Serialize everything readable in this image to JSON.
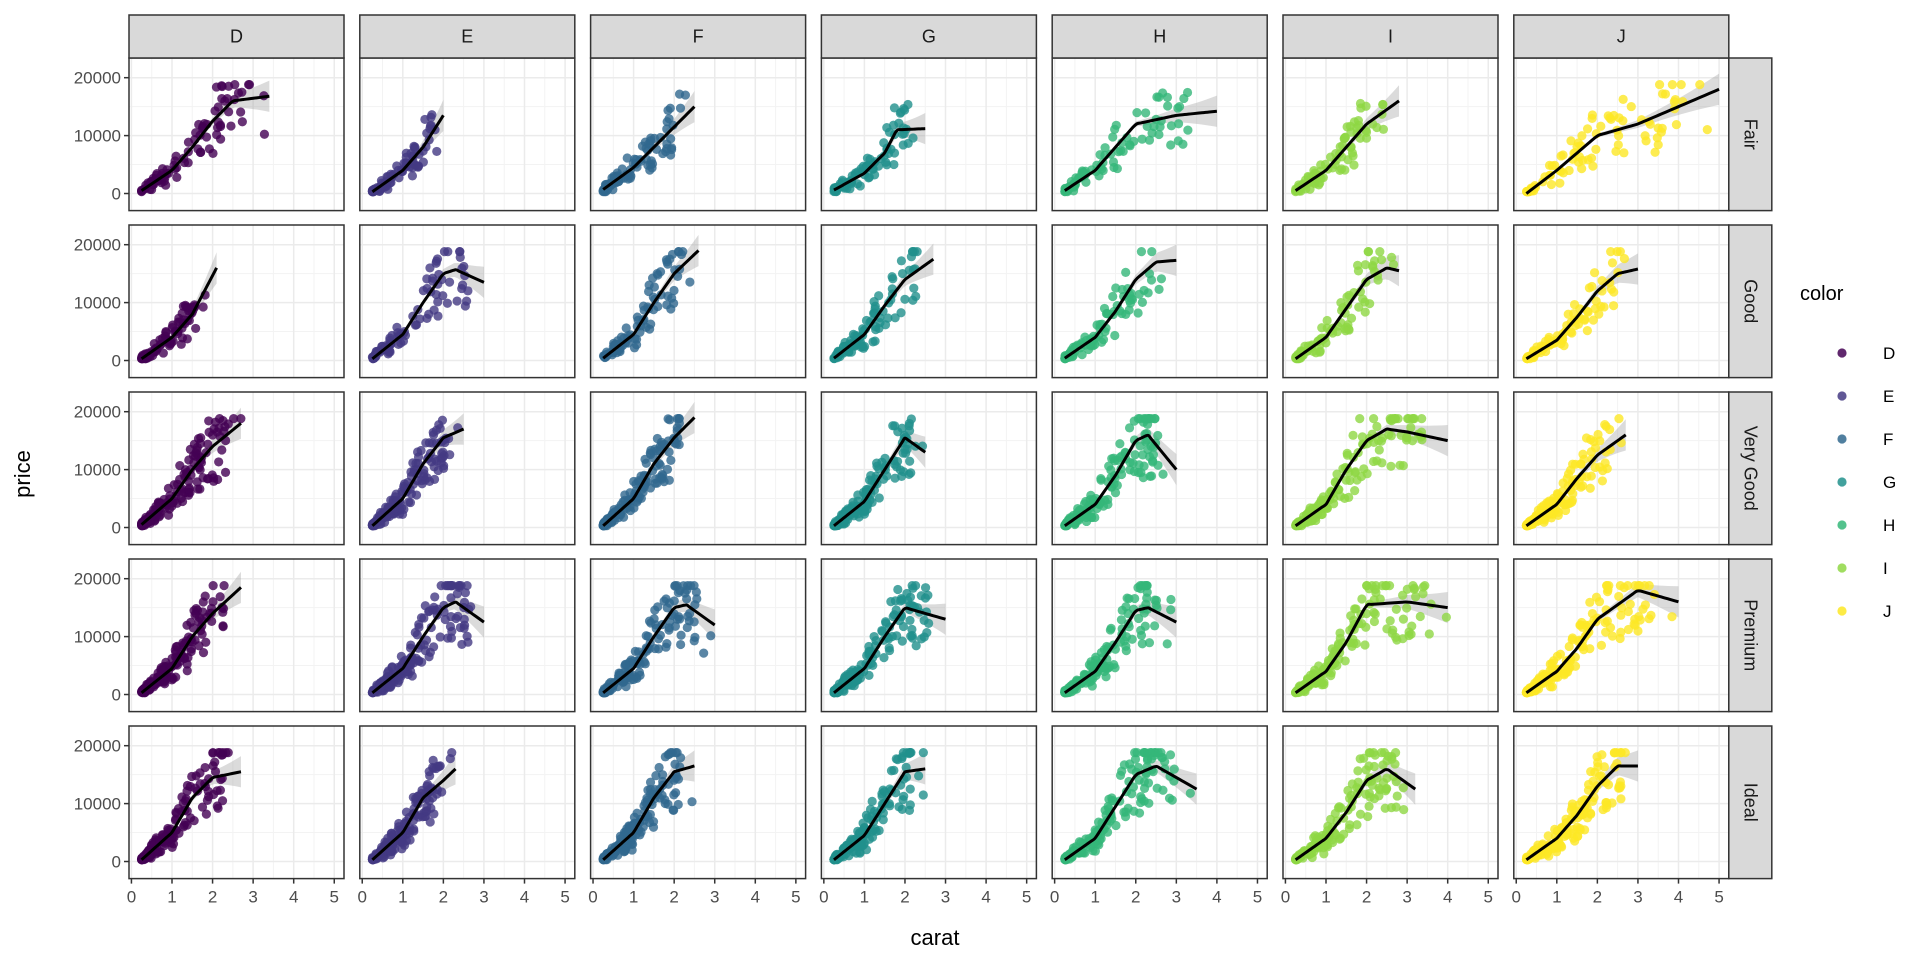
{
  "chart_data": {
    "type": "scatter",
    "title": "",
    "xlabel": "carat",
    "ylabel": "price",
    "xlim": [
      -0.06,
      5.24
    ],
    "ylim": [
      -2950,
      23400
    ],
    "x_ticks": [
      "0",
      "1",
      "2",
      "3",
      "4",
      "5"
    ],
    "x_tick_values": [
      0,
      1,
      2,
      3,
      4,
      5
    ],
    "y_ticks": [
      "0",
      "10000",
      "20000"
    ],
    "y_tick_values": [
      0,
      10000,
      20000
    ],
    "grid": true,
    "facet_cols": [
      "D",
      "E",
      "F",
      "G",
      "H",
      "I",
      "J"
    ],
    "facet_rows": [
      "Fair",
      "Good",
      "Very Good",
      "Premium",
      "Ideal"
    ],
    "legend": {
      "title": "color",
      "placement": "right",
      "entries": [
        {
          "label": "D",
          "color": "#440154"
        },
        {
          "label": "E",
          "color": "#443A83"
        },
        {
          "label": "F",
          "color": "#31688E"
        },
        {
          "label": "G",
          "color": "#21908C"
        },
        {
          "label": "H",
          "color": "#35B779"
        },
        {
          "label": "I",
          "color": "#8FD744"
        },
        {
          "label": "J",
          "color": "#FDE725"
        }
      ]
    },
    "smooth_curves": {
      "Fair": {
        "D": [
          [
            0.25,
            500
          ],
          [
            1,
            4000
          ],
          [
            1.5,
            8000
          ],
          [
            2,
            12500
          ],
          [
            2.5,
            16000
          ],
          [
            3.4,
            16800
          ]
        ],
        "E": [
          [
            0.25,
            300
          ],
          [
            1,
            4000
          ],
          [
            1.5,
            8000
          ],
          [
            2,
            13500
          ]
        ],
        "F": [
          [
            0.25,
            700
          ],
          [
            1,
            4500
          ],
          [
            1.5,
            8000
          ],
          [
            2,
            11500
          ],
          [
            2.5,
            15000
          ]
        ],
        "G": [
          [
            0.25,
            600
          ],
          [
            1,
            3500
          ],
          [
            1.5,
            7000
          ],
          [
            1.8,
            11000
          ],
          [
            2.5,
            11200
          ]
        ],
        "H": [
          [
            0.25,
            500
          ],
          [
            1,
            4000
          ],
          [
            1.5,
            8000
          ],
          [
            2,
            12000
          ],
          [
            3,
            13500
          ],
          [
            4,
            14200
          ]
        ],
        "I": [
          [
            0.25,
            500
          ],
          [
            1,
            4000
          ],
          [
            1.5,
            8000
          ],
          [
            2,
            12000
          ],
          [
            2.8,
            16000
          ]
        ],
        "J": [
          [
            0.25,
            0
          ],
          [
            1,
            4000
          ],
          [
            2,
            10000
          ],
          [
            3,
            12000
          ],
          [
            4,
            15000
          ],
          [
            5,
            18000
          ]
        ]
      },
      "Good": {
        "D": [
          [
            0.25,
            300
          ],
          [
            1,
            4000
          ],
          [
            1.5,
            8000
          ],
          [
            2.1,
            16000
          ]
        ],
        "E": [
          [
            0.25,
            300
          ],
          [
            1,
            4500
          ],
          [
            1.5,
            10000
          ],
          [
            2,
            15000
          ],
          [
            2.3,
            15700
          ],
          [
            3,
            13500
          ]
        ],
        "F": [
          [
            0.25,
            400
          ],
          [
            1,
            4500
          ],
          [
            1.5,
            10000
          ],
          [
            2,
            15000
          ],
          [
            2.6,
            19000
          ]
        ],
        "G": [
          [
            0.25,
            400
          ],
          [
            1,
            4500
          ],
          [
            1.5,
            9500
          ],
          [
            2,
            14000
          ],
          [
            2.7,
            17500
          ]
        ],
        "H": [
          [
            0.25,
            400
          ],
          [
            1,
            4000
          ],
          [
            1.5,
            8500
          ],
          [
            2,
            14000
          ],
          [
            2.5,
            17000
          ],
          [
            3,
            17300
          ]
        ],
        "I": [
          [
            0.25,
            300
          ],
          [
            1,
            4000
          ],
          [
            1.5,
            9000
          ],
          [
            2,
            14000
          ],
          [
            2.5,
            16000
          ],
          [
            2.8,
            15500
          ]
        ],
        "J": [
          [
            0.25,
            300
          ],
          [
            1,
            3500
          ],
          [
            1.5,
            7500
          ],
          [
            2,
            12000
          ],
          [
            2.5,
            15000
          ],
          [
            3,
            15800
          ]
        ]
      },
      "Very Good": {
        "D": [
          [
            0.25,
            500
          ],
          [
            1,
            5000
          ],
          [
            1.5,
            10000
          ],
          [
            2,
            14000
          ],
          [
            2.7,
            18000
          ]
        ],
        "E": [
          [
            0.25,
            300
          ],
          [
            1,
            5000
          ],
          [
            1.5,
            11000
          ],
          [
            2,
            15500
          ],
          [
            2.5,
            17000
          ]
        ],
        "F": [
          [
            0.25,
            300
          ],
          [
            1,
            5000
          ],
          [
            1.5,
            11000
          ],
          [
            2,
            15500
          ],
          [
            2.5,
            19000
          ]
        ],
        "G": [
          [
            0.25,
            300
          ],
          [
            1,
            4500
          ],
          [
            1.5,
            10000
          ],
          [
            2,
            15500
          ],
          [
            2.5,
            13000
          ]
        ],
        "H": [
          [
            0.25,
            300
          ],
          [
            1,
            4000
          ],
          [
            1.5,
            9000
          ],
          [
            2,
            15000
          ],
          [
            2.3,
            16000
          ],
          [
            3,
            10000
          ]
        ],
        "I": [
          [
            0.25,
            300
          ],
          [
            1,
            4000
          ],
          [
            1.5,
            10000
          ],
          [
            2,
            15000
          ],
          [
            2.5,
            17000
          ],
          [
            3,
            16500
          ],
          [
            4,
            15000
          ]
        ],
        "J": [
          [
            0.25,
            300
          ],
          [
            1,
            4000
          ],
          [
            1.5,
            8500
          ],
          [
            2,
            12500
          ],
          [
            2.7,
            16000
          ]
        ]
      },
      "Premium": {
        "D": [
          [
            0.25,
            300
          ],
          [
            1,
            4500
          ],
          [
            1.5,
            10000
          ],
          [
            2,
            14000
          ],
          [
            2.7,
            18500
          ]
        ],
        "E": [
          [
            0.25,
            300
          ],
          [
            1,
            4500
          ],
          [
            1.5,
            10000
          ],
          [
            2,
            15000
          ],
          [
            2.3,
            16000
          ],
          [
            3,
            12500
          ]
        ],
        "F": [
          [
            0.25,
            300
          ],
          [
            1,
            4500
          ],
          [
            1.5,
            10000
          ],
          [
            2,
            15000
          ],
          [
            2.3,
            15500
          ],
          [
            3,
            12000
          ]
        ],
        "G": [
          [
            0.25,
            300
          ],
          [
            1,
            4500
          ],
          [
            1.5,
            10000
          ],
          [
            2,
            15000
          ],
          [
            3,
            13000
          ]
        ],
        "H": [
          [
            0.25,
            300
          ],
          [
            1,
            4000
          ],
          [
            1.5,
            9000
          ],
          [
            2,
            14500
          ],
          [
            2.3,
            15000
          ],
          [
            3,
            12500
          ]
        ],
        "I": [
          [
            0.25,
            300
          ],
          [
            1,
            4000
          ],
          [
            1.5,
            9000
          ],
          [
            2,
            15500
          ],
          [
            3,
            16000
          ],
          [
            4,
            15000
          ]
        ],
        "J": [
          [
            0.25,
            300
          ],
          [
            1,
            4000
          ],
          [
            1.5,
            8000
          ],
          [
            2,
            13000
          ],
          [
            3,
            18000
          ],
          [
            4,
            16000
          ]
        ]
      },
      "Ideal": {
        "D": [
          [
            0.25,
            300
          ],
          [
            1,
            5000
          ],
          [
            1.5,
            11000
          ],
          [
            2,
            14500
          ],
          [
            2.7,
            15500
          ]
        ],
        "E": [
          [
            0.25,
            300
          ],
          [
            1,
            5000
          ],
          [
            1.5,
            11000
          ],
          [
            2,
            14000
          ],
          [
            2.3,
            16000
          ]
        ],
        "F": [
          [
            0.25,
            300
          ],
          [
            1,
            5000
          ],
          [
            1.5,
            11000
          ],
          [
            2,
            15500
          ],
          [
            2.5,
            16500
          ]
        ],
        "G": [
          [
            0.25,
            300
          ],
          [
            1,
            4500
          ],
          [
            1.5,
            10000
          ],
          [
            2,
            15500
          ],
          [
            2.5,
            16000
          ]
        ],
        "H": [
          [
            0.25,
            300
          ],
          [
            1,
            4000
          ],
          [
            1.5,
            9500
          ],
          [
            2,
            15000
          ],
          [
            2.5,
            16500
          ],
          [
            3.5,
            12500
          ]
        ],
        "I": [
          [
            0.25,
            300
          ],
          [
            1,
            4000
          ],
          [
            1.5,
            8500
          ],
          [
            2,
            14000
          ],
          [
            2.5,
            16000
          ],
          [
            3.2,
            12500
          ]
        ],
        "J": [
          [
            0.25,
            300
          ],
          [
            1,
            4000
          ],
          [
            1.5,
            8000
          ],
          [
            2,
            13000
          ],
          [
            2.5,
            16500
          ],
          [
            3,
            16500
          ]
        ]
      }
    }
  }
}
